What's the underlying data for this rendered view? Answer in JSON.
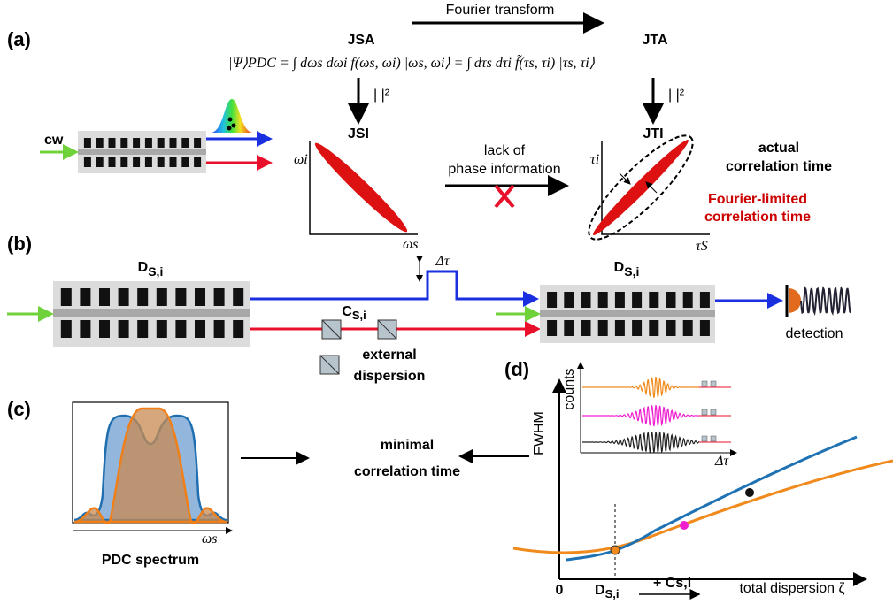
{
  "panel_a": {
    "label": "(a)",
    "equation": "|Ψ⟩PDC = ∫ dωs dωi f(ωs, ωi) |ωs, ωi⟩ = ∫ dτs dτi f̃(τs, τi) |τs, τi⟩",
    "jsa": "JSA",
    "jta": "JTA",
    "fourier": "Fourier transform",
    "abs_squared": [
      "| |²",
      "| |²"
    ],
    "jsi": "JSI",
    "jti": "JTI",
    "cw": "cw",
    "jsi_axes": {
      "y": "ωi",
      "x": "ωs"
    },
    "jti_axes": {
      "y": "τi",
      "x": "τS"
    },
    "phase_note": [
      "lack of",
      "phase information"
    ],
    "actual": [
      "actual",
      "correlation time"
    ],
    "fourier_limited": [
      "Fourier-limited",
      "correlation time"
    ]
  },
  "panel_b": {
    "label": "(b)",
    "source": {
      "base": "D",
      "sub": "S,i"
    },
    "delay": "Δτ",
    "compressor": {
      "base": "C",
      "sub": "S,i"
    },
    "external": [
      "external",
      "dispersion"
    ],
    "detector": {
      "base": "D",
      "sub": "S,i"
    },
    "detection": "detection"
  },
  "panel_c": {
    "label": "(c)",
    "x_axis": "ωs",
    "caption": "PDC spectrum",
    "result": [
      "minimal",
      "correlation time"
    ]
  },
  "panel_d": {
    "label": "(d)",
    "y_axis": "FWHM",
    "inset_y": "counts",
    "inset_x": "Δτ",
    "origin": "0",
    "ds": {
      "base": "D",
      "sub": "S,i"
    },
    "cs": "+ Cs,i",
    "x_axis": "total dispersion ζ"
  }
}
